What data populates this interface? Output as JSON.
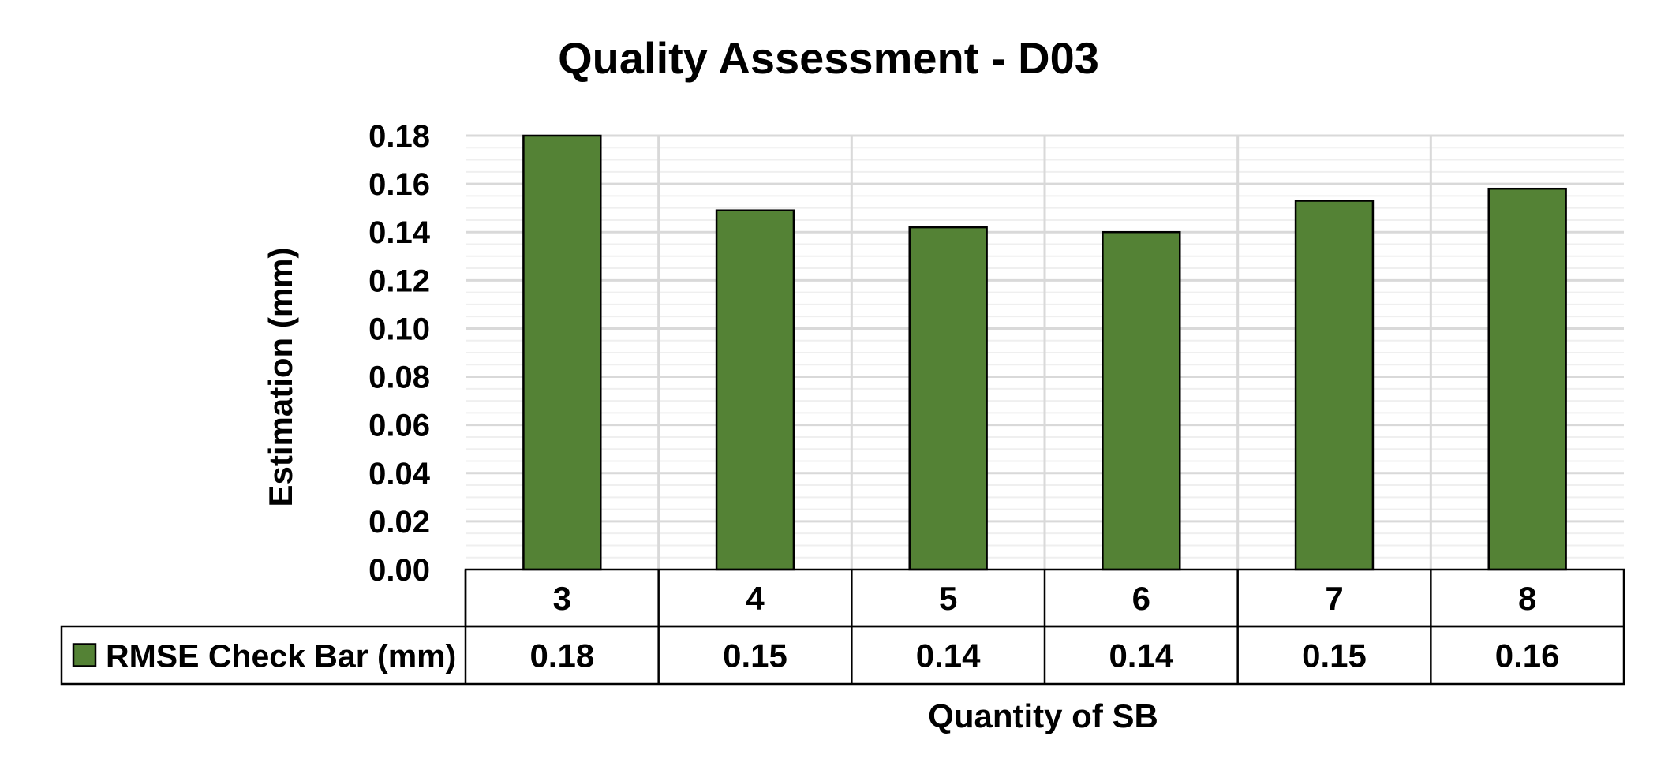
{
  "chart_data": {
    "type": "bar",
    "title": "Quality Assessment - D03",
    "xlabel": "Quantity of SB",
    "ylabel": "Estimation (mm)",
    "categories": [
      "3",
      "4",
      "5",
      "6",
      "7",
      "8"
    ],
    "series": [
      {
        "name": "RMSE Check Bar (mm)",
        "values": [
          0.18,
          0.149,
          0.142,
          0.14,
          0.153,
          0.158
        ],
        "table_labels": [
          "0.18",
          "0.15",
          "0.14",
          "0.14",
          "0.15",
          "0.16"
        ],
        "color": "#548235"
      }
    ],
    "ylim": [
      0,
      0.18
    ],
    "yticks": [
      "0.00",
      "0.02",
      "0.04",
      "0.06",
      "0.08",
      "0.10",
      "0.12",
      "0.14",
      "0.16",
      "0.18"
    ],
    "grid": true,
    "data_table": true,
    "legend": "data-table"
  }
}
